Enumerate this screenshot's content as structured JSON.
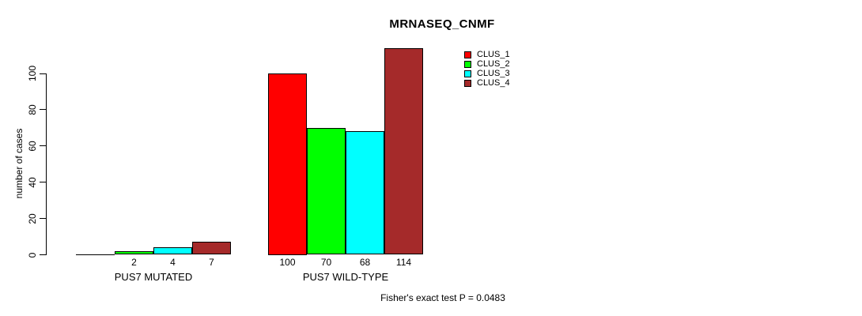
{
  "title": "MRNASEQ_CNMF",
  "y_axis": {
    "label": "number of cases",
    "ticks": [
      0,
      20,
      40,
      60,
      80,
      100
    ]
  },
  "footer": "Fisher's exact test P = 0.0483",
  "colors": {
    "clus_1": "#FF0000",
    "clus_2": "#00FF00",
    "clus_3": "#00FFFF",
    "clus_4": "#A52A2A",
    "axis": "#000000",
    "background": "#FFFFFF"
  },
  "chart_data": {
    "type": "bar",
    "title": "MRNASEQ_CNMF",
    "xlabel": "",
    "ylabel": "number of cases",
    "ylim": [
      0,
      114
    ],
    "y_ticks": [
      0,
      20,
      40,
      60,
      80,
      100
    ],
    "grid": false,
    "legend_position": "top-right",
    "categories": [
      "PUS7 MUTATED",
      "PUS7 WILD-TYPE"
    ],
    "series": [
      {
        "name": "CLUS_1",
        "color": "#FF0000",
        "values": [
          0,
          100
        ]
      },
      {
        "name": "CLUS_2",
        "color": "#00FF00",
        "values": [
          2,
          70
        ]
      },
      {
        "name": "CLUS_3",
        "color": "#00FFFF",
        "values": [
          4,
          68
        ]
      },
      {
        "name": "CLUS_4",
        "color": "#A52A2A",
        "values": [
          7,
          114
        ]
      }
    ],
    "bar_value_labels": {
      "PUS7 MUTATED": [
        "",
        "2",
        "4",
        "7"
      ],
      "PUS7 WILD-TYPE": [
        "100",
        "70",
        "68",
        "114"
      ]
    },
    "annotation": "Fisher's exact test P = 0.0483"
  }
}
